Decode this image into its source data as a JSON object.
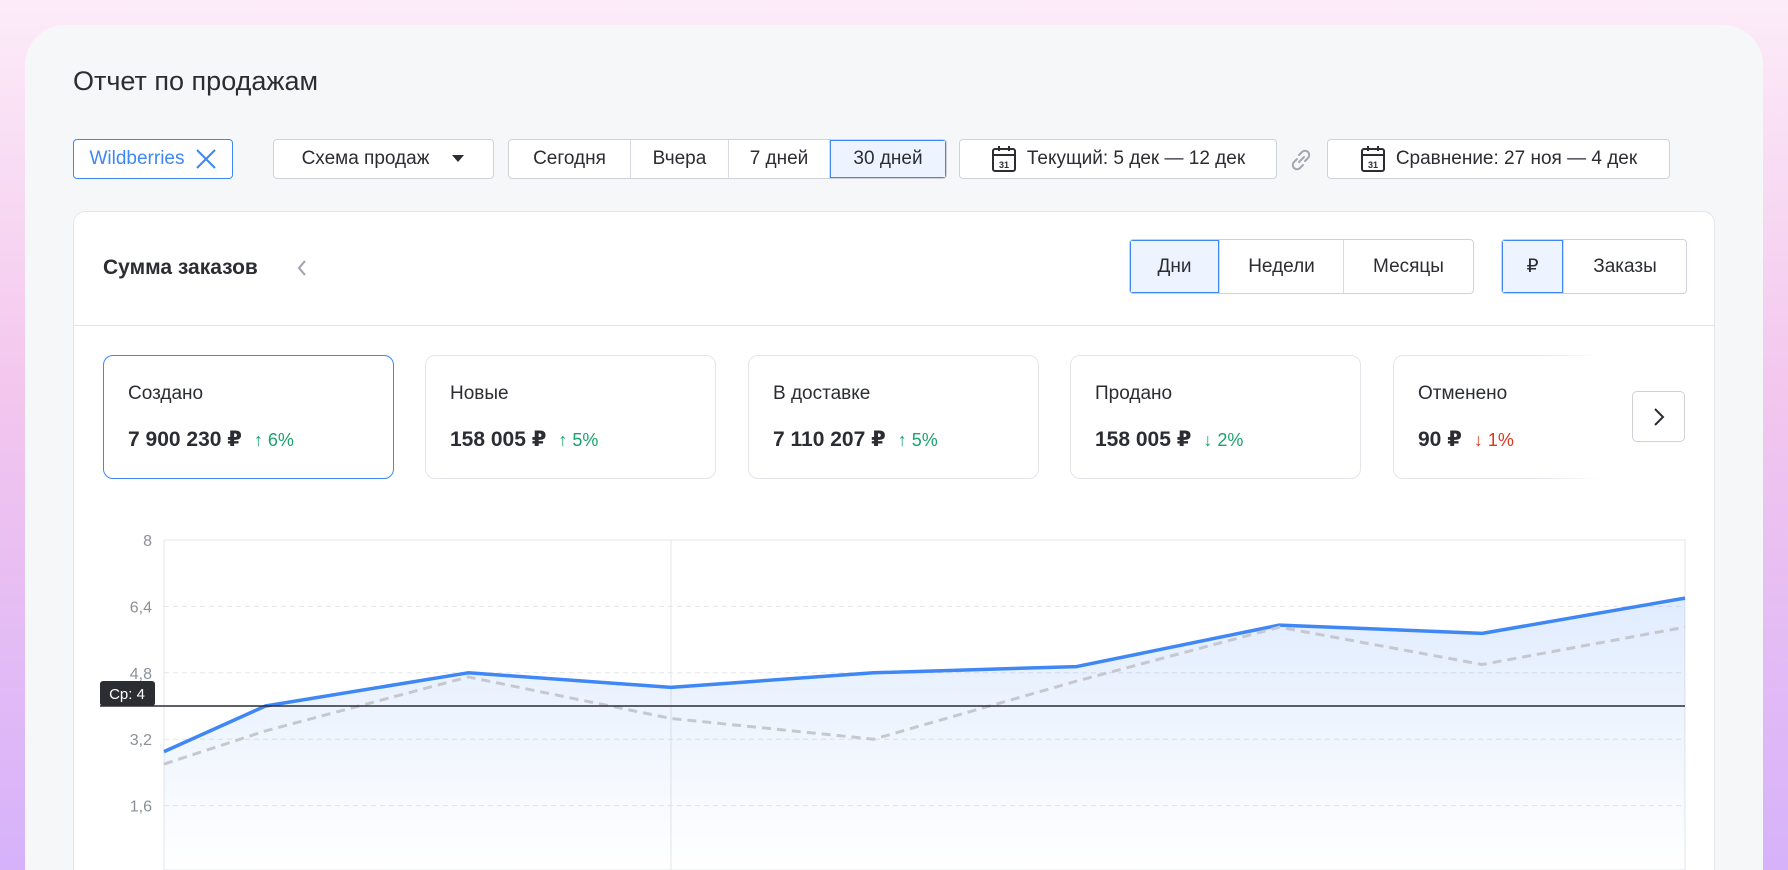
{
  "page": {
    "title": "Отчет по продажам"
  },
  "filters": {
    "marketplace": "Wildberries",
    "scheme": "Схема продаж",
    "periods": [
      "Сегодня",
      "Вчера",
      "7 дней",
      "30 дней"
    ],
    "active_period": "30 дней",
    "current_range": "Текущий: 5 дек — 12 дек",
    "compare_range": "Сравнение: 27 ноя — 4 дек"
  },
  "panel": {
    "title": "Сумма заказов",
    "granularity": [
      "Дни",
      "Недели",
      "Месяцы"
    ],
    "active_granularity": "Дни",
    "units": [
      "₽",
      "Заказы"
    ],
    "active_unit": "₽"
  },
  "kpis": [
    {
      "label": "Создано",
      "value": "7 900 230 ₽",
      "change": "↑ 6%",
      "trend": "up",
      "color": "#1aa36b",
      "active": true
    },
    {
      "label": "Новые",
      "value": "158 005 ₽",
      "change": "↑ 5%",
      "trend": "up",
      "color": "#1aa36b"
    },
    {
      "label": "В доставке",
      "value": "7 110 207 ₽",
      "change": "↑ 5%",
      "trend": "up",
      "color": "#1aa36b"
    },
    {
      "label": "Продано",
      "value": "158 005 ₽",
      "change": "↓ 2%",
      "trend": "down",
      "color": "#1aa36b"
    },
    {
      "label": "Отменено",
      "value": "90  ₽",
      "change": "↓ 1%",
      "trend": "down",
      "color": "#e0341c"
    }
  ],
  "chart_data": {
    "type": "line",
    "x": [
      0,
      0.5,
      1.5,
      2.5,
      3.5,
      4.5,
      5.5,
      6.5,
      7.5
    ],
    "series": [
      {
        "values": [
          2.9,
          4.0,
          4.8,
          4.45,
          4.8,
          4.95,
          5.95,
          5.75,
          6.6
        ],
        "color": "#3f87f5",
        "style": "solid",
        "area": true
      },
      {
        "values": [
          2.6,
          3.4,
          4.7,
          3.7,
          3.2,
          4.6,
          5.9,
          5.0,
          5.9
        ],
        "color": "#c6c8cf",
        "style": "dashed"
      }
    ],
    "ylim": [
      0,
      8
    ],
    "yticks": [
      "8",
      "6,4",
      "4,8",
      "3,2",
      "1,6"
    ],
    "ytick_values": [
      8,
      6.4,
      4.8,
      3.2,
      1.6
    ],
    "average": {
      "value": 4,
      "label": "Ср: 4"
    },
    "grid": true
  }
}
